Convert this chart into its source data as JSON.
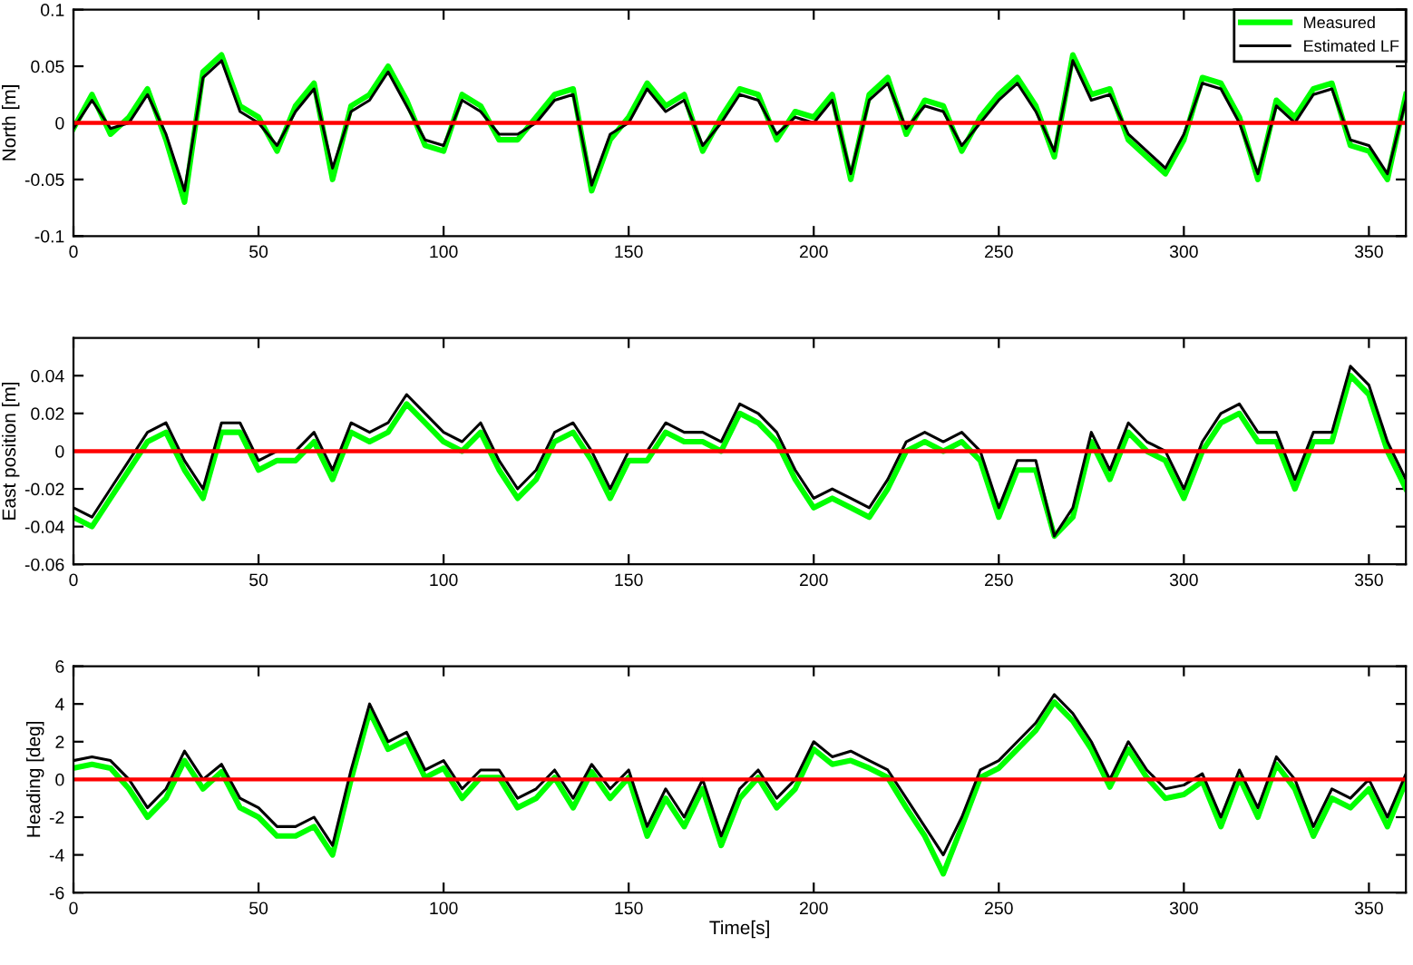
{
  "chart_data": [
    {
      "type": "line",
      "ylabel": "North [m]",
      "x": [
        0,
        5,
        10,
        15,
        20,
        25,
        30,
        35,
        40,
        45,
        50,
        55,
        60,
        65,
        70,
        75,
        80,
        85,
        90,
        95,
        100,
        105,
        110,
        115,
        120,
        125,
        130,
        135,
        140,
        145,
        150,
        155,
        160,
        165,
        170,
        175,
        180,
        185,
        190,
        195,
        200,
        205,
        210,
        215,
        220,
        225,
        230,
        235,
        240,
        245,
        250,
        255,
        260,
        265,
        270,
        275,
        280,
        285,
        290,
        295,
        300,
        305,
        310,
        315,
        320,
        325,
        330,
        335,
        340,
        345,
        350,
        355,
        360
      ],
      "series": [
        {
          "name": "Measured",
          "color": "#00ff00",
          "values": [
            -0.005,
            0.025,
            -0.01,
            0.005,
            0.03,
            -0.015,
            -0.07,
            0.045,
            0.06,
            0.015,
            0.005,
            -0.025,
            0.015,
            0.035,
            -0.05,
            0.015,
            0.025,
            0.05,
            0.02,
            -0.02,
            -0.025,
            0.025,
            0.015,
            -0.015,
            -0.015,
            0.005,
            0.025,
            0.03,
            -0.06,
            -0.015,
            0.005,
            0.035,
            0.015,
            0.025,
            -0.025,
            0.005,
            0.03,
            0.025,
            -0.015,
            0.01,
            0.005,
            0.025,
            -0.05,
            0.025,
            0.04,
            -0.01,
            0.02,
            0.015,
            -0.025,
            0.005,
            0.025,
            0.04,
            0.015,
            -0.03,
            0.06,
            0.025,
            0.03,
            -0.015,
            -0.03,
            -0.045,
            -0.015,
            0.04,
            0.035,
            0.005,
            -0.05,
            0.02,
            0.005,
            0.03,
            0.035,
            -0.02,
            -0.025,
            -0.05,
            0.025
          ]
        },
        {
          "name": "Estimated LF",
          "color": "#000000",
          "values": [
            -0.005,
            0.02,
            -0.005,
            0.0,
            0.025,
            -0.01,
            -0.06,
            0.04,
            0.055,
            0.01,
            0.0,
            -0.02,
            0.01,
            0.03,
            -0.04,
            0.01,
            0.02,
            0.045,
            0.015,
            -0.015,
            -0.02,
            0.02,
            0.01,
            -0.01,
            -0.01,
            0.0,
            0.02,
            0.025,
            -0.055,
            -0.01,
            0.0,
            0.03,
            0.01,
            0.02,
            -0.02,
            0.0,
            0.025,
            0.02,
            -0.01,
            0.005,
            0.0,
            0.02,
            -0.045,
            0.02,
            0.035,
            -0.005,
            0.015,
            0.01,
            -0.02,
            0.0,
            0.02,
            0.035,
            0.01,
            -0.025,
            0.055,
            0.02,
            0.025,
            -0.01,
            -0.025,
            -0.04,
            -0.01,
            0.035,
            0.03,
            0.0,
            -0.045,
            0.015,
            0.0,
            0.025,
            0.03,
            -0.015,
            -0.02,
            -0.045,
            0.02
          ]
        }
      ],
      "ref_lines": [
        {
          "axis": "y",
          "value": 0,
          "color": "#ff0000"
        }
      ],
      "xlim": [
        0,
        360
      ],
      "xticks": [
        0,
        50,
        100,
        150,
        200,
        250,
        300,
        350
      ],
      "ylim": [
        -0.1,
        0.1
      ],
      "yticks": [
        -0.1,
        -0.05,
        0,
        0.05,
        0.1
      ],
      "legend": "top right",
      "grid": false
    },
    {
      "type": "line",
      "ylabel": "East position [m]",
      "x": [
        0,
        5,
        10,
        15,
        20,
        25,
        30,
        35,
        40,
        45,
        50,
        55,
        60,
        65,
        70,
        75,
        80,
        85,
        90,
        95,
        100,
        105,
        110,
        115,
        120,
        125,
        130,
        135,
        140,
        145,
        150,
        155,
        160,
        165,
        170,
        175,
        180,
        185,
        190,
        195,
        200,
        205,
        210,
        215,
        220,
        225,
        230,
        235,
        240,
        245,
        250,
        255,
        260,
        265,
        270,
        275,
        280,
        285,
        290,
        295,
        300,
        305,
        310,
        315,
        320,
        325,
        330,
        335,
        340,
        345,
        350,
        355,
        360
      ],
      "series": [
        {
          "color": "#00ff00",
          "values": [
            -0.035,
            -0.04,
            -0.025,
            -0.01,
            0.005,
            0.01,
            -0.01,
            -0.025,
            0.01,
            0.01,
            -0.01,
            -0.005,
            -0.005,
            0.005,
            -0.015,
            0.01,
            0.005,
            0.01,
            0.025,
            0.015,
            0.005,
            0.0,
            0.01,
            -0.01,
            -0.025,
            -0.015,
            0.005,
            0.01,
            -0.005,
            -0.025,
            -0.005,
            -0.005,
            0.01,
            0.005,
            0.005,
            0.0,
            0.02,
            0.015,
            0.005,
            -0.015,
            -0.03,
            -0.025,
            -0.03,
            -0.035,
            -0.02,
            0.0,
            0.005,
            0.0,
            0.005,
            -0.005,
            -0.035,
            -0.01,
            -0.01,
            -0.045,
            -0.035,
            0.005,
            -0.015,
            0.01,
            0.0,
            -0.005,
            -0.025,
            0.0,
            0.015,
            0.02,
            0.005,
            0.005,
            -0.02,
            0.005,
            0.005,
            0.04,
            0.03,
            0.0,
            -0.02
          ]
        },
        {
          "color": "#000000",
          "values": [
            -0.03,
            -0.035,
            -0.02,
            -0.005,
            0.01,
            0.015,
            -0.005,
            -0.02,
            0.015,
            0.015,
            -0.005,
            0.0,
            0.0,
            0.01,
            -0.01,
            0.015,
            0.01,
            0.015,
            0.03,
            0.02,
            0.01,
            0.005,
            0.015,
            -0.005,
            -0.02,
            -0.01,
            0.01,
            0.015,
            0.0,
            -0.02,
            0.0,
            0.0,
            0.015,
            0.01,
            0.01,
            0.005,
            0.025,
            0.02,
            0.01,
            -0.01,
            -0.025,
            -0.02,
            -0.025,
            -0.03,
            -0.015,
            0.005,
            0.01,
            0.005,
            0.01,
            0.0,
            -0.03,
            -0.005,
            -0.005,
            -0.045,
            -0.03,
            0.01,
            -0.01,
            0.015,
            0.005,
            0.0,
            -0.02,
            0.005,
            0.02,
            0.025,
            0.01,
            0.01,
            -0.015,
            0.01,
            0.01,
            0.045,
            0.035,
            0.005,
            -0.015
          ]
        }
      ],
      "ref_lines": [
        {
          "axis": "y",
          "value": 0,
          "color": "#ff0000"
        }
      ],
      "xlim": [
        0,
        360
      ],
      "xticks": [
        0,
        50,
        100,
        150,
        200,
        250,
        300,
        350
      ],
      "ylim": [
        -0.06,
        0.06
      ],
      "yticks": [
        -0.06,
        -0.04,
        -0.02,
        0,
        0.02,
        0.04
      ],
      "legend": false,
      "grid": false
    },
    {
      "type": "line",
      "ylabel": "Heading [deg]",
      "xlabel": "Time[s]",
      "x": [
        0,
        5,
        10,
        15,
        20,
        25,
        30,
        35,
        40,
        45,
        50,
        55,
        60,
        65,
        70,
        75,
        80,
        85,
        90,
        95,
        100,
        105,
        110,
        115,
        120,
        125,
        130,
        135,
        140,
        145,
        150,
        155,
        160,
        165,
        170,
        175,
        180,
        185,
        190,
        195,
        200,
        205,
        210,
        215,
        220,
        225,
        230,
        235,
        240,
        245,
        250,
        255,
        260,
        265,
        270,
        275,
        280,
        285,
        290,
        295,
        300,
        305,
        310,
        315,
        320,
        325,
        330,
        335,
        340,
        345,
        350,
        355,
        360
      ],
      "series": [
        {
          "color": "#00ff00",
          "values": [
            0.6,
            0.8,
            0.6,
            -0.5,
            -2.0,
            -1.0,
            1.0,
            -0.5,
            0.4,
            -1.5,
            -2.0,
            -3.0,
            -3.0,
            -2.5,
            -4.0,
            0.0,
            3.6,
            1.6,
            2.1,
            0.1,
            0.6,
            -1.0,
            0.1,
            0.1,
            -1.5,
            -1.0,
            0.1,
            -1.5,
            0.4,
            -1.0,
            0.1,
            -3.0,
            -1.0,
            -2.5,
            -0.5,
            -3.5,
            -1.0,
            0.1,
            -1.5,
            -0.5,
            1.6,
            0.8,
            1.0,
            0.6,
            0.1,
            -1.5,
            -3.0,
            -5.0,
            -2.5,
            0.1,
            0.6,
            1.6,
            2.6,
            4.1,
            3.1,
            1.6,
            -0.4,
            1.6,
            0.1,
            -1.0,
            -0.8,
            -0.1,
            -2.5,
            0.1,
            -2.0,
            0.8,
            -0.5,
            -3.0,
            -1.0,
            -1.5,
            -0.5,
            -2.5,
            -0.1
          ]
        },
        {
          "color": "#000000",
          "values": [
            1.0,
            1.2,
            1.0,
            0.0,
            -1.5,
            -0.5,
            1.5,
            0.0,
            0.8,
            -1.0,
            -1.5,
            -2.5,
            -2.5,
            -2.0,
            -3.5,
            0.5,
            4.0,
            2.0,
            2.5,
            0.5,
            1.0,
            -0.5,
            0.5,
            0.5,
            -1.0,
            -0.5,
            0.5,
            -1.0,
            0.8,
            -0.5,
            0.5,
            -2.5,
            -0.5,
            -2.0,
            0.0,
            -3.0,
            -0.5,
            0.5,
            -1.0,
            0.0,
            2.0,
            1.2,
            1.5,
            1.0,
            0.5,
            -1.0,
            -2.5,
            -4.0,
            -2.0,
            0.5,
            1.0,
            2.0,
            3.0,
            4.5,
            3.5,
            2.0,
            0.0,
            2.0,
            0.5,
            -0.5,
            -0.3,
            0.3,
            -2.0,
            0.5,
            -1.5,
            1.2,
            0.0,
            -2.5,
            -0.5,
            -1.0,
            0.0,
            -2.0,
            0.3
          ]
        }
      ],
      "ref_lines": [
        {
          "axis": "y",
          "value": 0,
          "color": "#ff0000"
        }
      ],
      "xlim": [
        0,
        360
      ],
      "xticks": [
        0,
        50,
        100,
        150,
        200,
        250,
        300,
        350
      ],
      "ylim": [
        -6,
        6
      ],
      "yticks": [
        -6,
        -4,
        -2,
        0,
        2,
        4,
        6
      ],
      "legend": false,
      "grid": false
    }
  ]
}
